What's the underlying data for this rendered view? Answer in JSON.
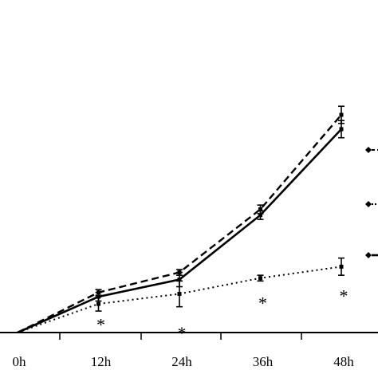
{
  "chart_data": {
    "type": "line",
    "categories": [
      "0h",
      "12h",
      "24h",
      "36h",
      "48h"
    ],
    "ylim": [
      0,
      1.6
    ],
    "grid": false,
    "legend_placement": "right, partially cropped",
    "series": [
      {
        "style": "dashed",
        "marker": "square",
        "values": [
          0.0,
          0.28,
          0.42,
          0.86,
          1.52
        ],
        "errors": [
          0.0,
          0.02,
          0.02,
          0.03,
          0.06
        ]
      },
      {
        "style": "solid",
        "marker": "square",
        "values": [
          0.0,
          0.25,
          0.37,
          0.82,
          1.42
        ],
        "errors": [
          0.0,
          0.03,
          0.05,
          0.03,
          0.06
        ]
      },
      {
        "style": "dotted",
        "marker": "square",
        "values": [
          0.0,
          0.2,
          0.27,
          0.38,
          0.46
        ],
        "errors": [
          0.0,
          0.05,
          0.09,
          0.02,
          0.06
        ]
      }
    ],
    "annotations": [
      {
        "x": "12h",
        "y": 0.07,
        "text": "*"
      },
      {
        "x": "24h",
        "y": 0.01,
        "text": "*"
      },
      {
        "x": "36h",
        "y": 0.22,
        "text": "*"
      },
      {
        "x": "48h",
        "y": 0.27,
        "text": "*"
      }
    ]
  }
}
